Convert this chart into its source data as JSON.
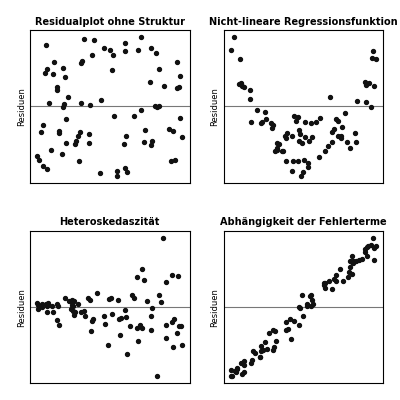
{
  "titles": [
    "Residualplot ohne Struktur",
    "Nicht-lineare Regressionsfunktion",
    "Heteroskedaszität",
    "Abhängigkeit der Fehlerterme"
  ],
  "ylabel": "Residuen",
  "dot_color": "#111111",
  "dot_size": 8,
  "line_color": "#777777",
  "figsize": [
    4.0,
    4.0
  ],
  "dpi": 100,
  "n_points": 80,
  "seed1": 42,
  "seed2": 7,
  "seed3": 13,
  "seed4": 99
}
